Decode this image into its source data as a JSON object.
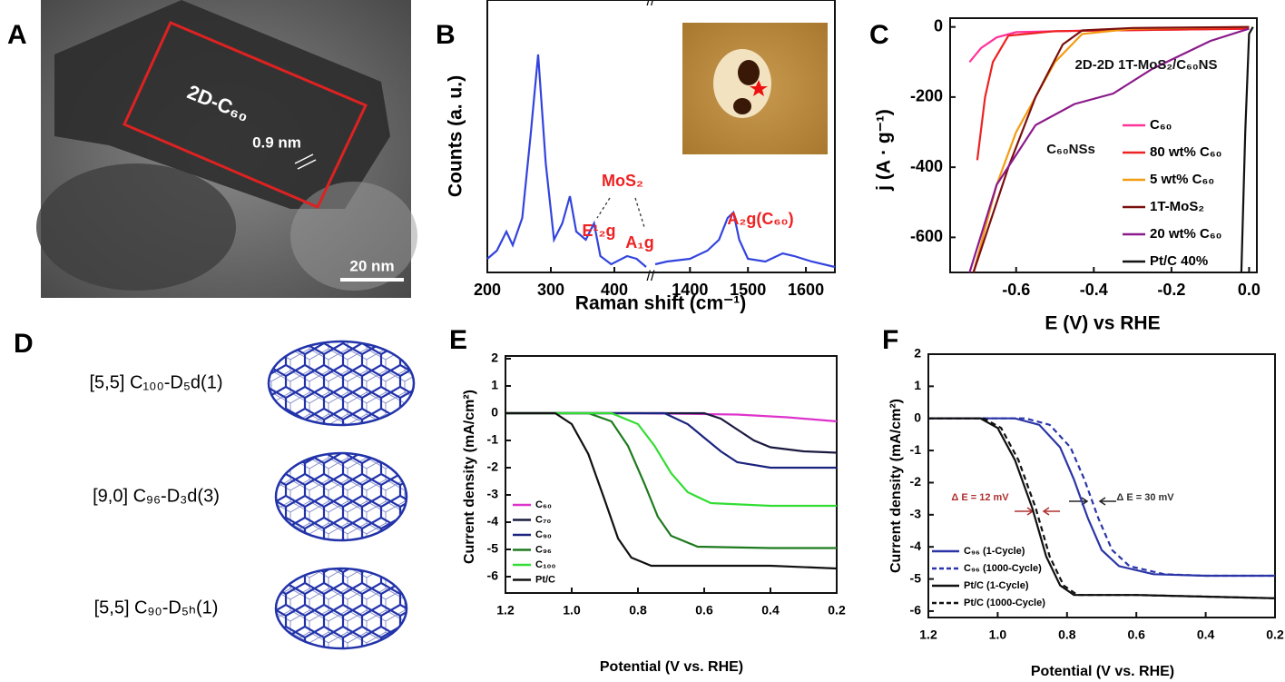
{
  "panel_a": {
    "panel": "A",
    "region_label": "2D-C₆₀",
    "spacing_label": "0.9 nm",
    "scale_bar": "20 nm"
  },
  "panel_d": {
    "panel": "D",
    "structures": [
      "[5,5] C₁₀₀-D₅d(1)",
      "[9,0] C₉₆-D₃d(3)",
      "[5,5] C₉₀-D₅ₕ(1)"
    ]
  },
  "chart_data": [
    {
      "type": "line",
      "panel": "B",
      "x_label": "Raman shift (cm⁻¹)",
      "y_label": "Counts (a. u.)",
      "xlim": [
        200,
        450
      ],
      "x2lim": [
        1340,
        1650
      ],
      "xticks": [
        200,
        300,
        400
      ],
      "x2ticks": [
        1400,
        1500,
        1600
      ],
      "ylim": [
        0,
        100
      ],
      "series": [
        {
          "color": "#3344dd",
          "x": [
            200,
            215,
            230,
            240,
            255,
            268,
            280,
            292,
            305,
            318,
            330,
            340,
            355,
            368,
            378,
            395,
            420,
            435,
            450
          ],
          "values": [
            5,
            8,
            15,
            10,
            20,
            50,
            80,
            40,
            12,
            18,
            28,
            15,
            12,
            18,
            6,
            3,
            6,
            5,
            2
          ]
        },
        {
          "color": "#3344dd",
          "axis": "x2",
          "x": [
            1340,
            1360,
            1400,
            1430,
            1450,
            1465,
            1475,
            1485,
            1500,
            1530,
            1560,
            1580,
            1610,
            1650
          ],
          "values": [
            3,
            4,
            5,
            8,
            12,
            20,
            22,
            12,
            5,
            4,
            7,
            6,
            4,
            2
          ]
        }
      ],
      "annotations": [
        {
          "text": "MoS₂",
          "color": "#ee2222"
        },
        {
          "text": "E¹₂g",
          "color": "#ee2222"
        },
        {
          "text": "A₁g",
          "color": "#ee2222"
        },
        {
          "text": "A₂g(C₆₀)",
          "color": "#ee2222"
        }
      ]
    },
    {
      "type": "line",
      "panel": "C",
      "x_label": "E (V) vs RHE",
      "y_label": "j (A · g⁻¹)",
      "xlim": [
        -0.77,
        0.02
      ],
      "ylim": [
        -700,
        25
      ],
      "xticks": [
        -0.6,
        -0.4,
        -0.2,
        {
          "value": 0,
          "label": "0.0"
        }
      ],
      "yticks": [
        0,
        -200,
        -400,
        -600
      ],
      "series": [
        {
          "name": "C₆₀",
          "color": "#ff3399",
          "x": [
            -0.72,
            -0.69,
            -0.65,
            -0.6,
            -0.4,
            -0.2,
            0
          ],
          "values": [
            -100,
            -60,
            -30,
            -15,
            -10,
            -8,
            -5
          ]
        },
        {
          "name": "80 wt% C₆₀",
          "color": "#ee2222",
          "x": [
            -0.7,
            -0.68,
            -0.66,
            -0.62,
            -0.5,
            -0.2,
            0
          ],
          "values": [
            -380,
            -200,
            -100,
            -25,
            -12,
            -8,
            -5
          ]
        },
        {
          "name": "5 wt% C₆₀",
          "color": "#f39c12",
          "x": [
            -0.71,
            -0.65,
            -0.6,
            -0.5,
            -0.43,
            -0.3,
            0
          ],
          "values": [
            -700,
            -450,
            -300,
            -100,
            -20,
            -5,
            0
          ]
        },
        {
          "name": "1T-MoS₂",
          "color": "#7b1010",
          "x": [
            -0.71,
            -0.62,
            -0.55,
            -0.48,
            -0.43,
            -0.3,
            0
          ],
          "values": [
            -700,
            -400,
            -200,
            -50,
            -10,
            -3,
            0
          ]
        },
        {
          "name": "20 wt% C₆₀",
          "color": "#8b1a8b",
          "x": [
            -0.72,
            -0.65,
            -0.55,
            -0.45,
            -0.35,
            -0.25,
            -0.1,
            0
          ],
          "values": [
            -700,
            -450,
            -280,
            -220,
            -190,
            -120,
            -40,
            -5
          ]
        },
        {
          "name": "Pt/C 40%",
          "color": "#111111",
          "x": [
            -0.02,
            -0.01,
            0,
            0.01
          ],
          "values": [
            -700,
            -300,
            -20,
            0
          ]
        }
      ],
      "annotations": [
        {
          "text": "2D-2D 1T-MoS₂/C₆₀NS",
          "color": "#111"
        },
        {
          "text": "C₆₀NSs",
          "color": "#111"
        }
      ]
    },
    {
      "type": "line",
      "panel": "E",
      "x_label": "Potential (V vs. RHE)",
      "y_label": "Current density (mA/cm²)",
      "xlim": [
        1.2,
        0.2
      ],
      "ylim": [
        -6.6,
        2.1
      ],
      "xticks": [
        1.2,
        {
          "value": 1,
          "label": "1.0"
        },
        0.8,
        0.6,
        0.4,
        0.2
      ],
      "yticks": [
        2,
        1,
        0,
        -1,
        -2,
        -3,
        -4,
        -5,
        -6
      ],
      "series": [
        {
          "name": "C₆₀",
          "color": "#dd33cc",
          "x": [
            1.2,
            0.8,
            0.5,
            0.35,
            0.2
          ],
          "values": [
            0,
            0,
            -0.05,
            -0.15,
            -0.3
          ]
        },
        {
          "name": "C₇₀",
          "color": "#1a1a40",
          "x": [
            1.2,
            0.6,
            0.55,
            0.5,
            0.45,
            0.4,
            0.3,
            0.2
          ],
          "values": [
            0,
            0,
            -0.2,
            -0.6,
            -1.0,
            -1.25,
            -1.4,
            -1.45
          ]
        },
        {
          "name": "C₉₀",
          "color": "#1a237e",
          "x": [
            1.2,
            0.72,
            0.65,
            0.6,
            0.55,
            0.5,
            0.4,
            0.2
          ],
          "values": [
            0,
            0,
            -0.4,
            -0.9,
            -1.4,
            -1.8,
            -2.0,
            -2.0
          ]
        },
        {
          "name": "C₉₆",
          "color": "#1e7a1e",
          "x": [
            1.2,
            0.95,
            0.88,
            0.83,
            0.78,
            0.74,
            0.7,
            0.62,
            0.4,
            0.2
          ],
          "values": [
            0,
            0,
            -0.3,
            -1.2,
            -2.6,
            -3.8,
            -4.5,
            -4.9,
            -4.95,
            -4.95
          ]
        },
        {
          "name": "C₁₀₀",
          "color": "#33dd33",
          "x": [
            1.2,
            0.88,
            0.8,
            0.75,
            0.7,
            0.65,
            0.58,
            0.4,
            0.2
          ],
          "values": [
            0,
            0,
            -0.4,
            -1.2,
            -2.2,
            -2.9,
            -3.3,
            -3.4,
            -3.4
          ]
        },
        {
          "name": "Pt/C",
          "color": "#111111",
          "x": [
            1.2,
            1.05,
            1.0,
            0.95,
            0.9,
            0.86,
            0.82,
            0.76,
            0.6,
            0.4,
            0.2
          ],
          "values": [
            0,
            0,
            -0.4,
            -1.5,
            -3.2,
            -4.6,
            -5.3,
            -5.6,
            -5.6,
            -5.6,
            -5.7
          ]
        }
      ]
    },
    {
      "type": "line",
      "panel": "F",
      "x_label": "Potential (V vs. RHE)",
      "y_label": "Current density (mA/cm²)",
      "xlim": [
        1.2,
        0.2
      ],
      "ylim": [
        -6.2,
        2
      ],
      "xticks": [
        1.2,
        {
          "value": 1,
          "label": "1.0"
        },
        0.8,
        0.6,
        0.4,
        0.2
      ],
      "yticks": [
        2,
        1,
        0,
        -1,
        -2,
        -3,
        -4,
        -5,
        -6
      ],
      "series": [
        {
          "name": "C₉₆ (1-Cycle)",
          "color": "#2b35a8",
          "x": [
            1.2,
            0.95,
            0.88,
            0.82,
            0.78,
            0.74,
            0.7,
            0.65,
            0.55,
            0.4,
            0.2
          ],
          "values": [
            0,
            0,
            -0.2,
            -0.9,
            -1.9,
            -3.1,
            -4.1,
            -4.6,
            -4.85,
            -4.9,
            -4.9
          ]
        },
        {
          "name": "C₉₆ (1000-Cycle)",
          "color": "#2b35a8",
          "dash": true,
          "x": [
            1.2,
            0.92,
            0.85,
            0.79,
            0.75,
            0.71,
            0.67,
            0.62,
            0.52,
            0.4,
            0.2
          ],
          "values": [
            0,
            0,
            -0.2,
            -0.9,
            -1.9,
            -3.1,
            -4.1,
            -4.6,
            -4.85,
            -4.9,
            -4.9
          ]
        },
        {
          "name": "Pt/C (1-Cycle)",
          "color": "#111111",
          "x": [
            1.2,
            1.05,
            1.0,
            0.95,
            0.9,
            0.86,
            0.82,
            0.78,
            0.6,
            0.4,
            0.2
          ],
          "values": [
            0,
            0,
            -0.3,
            -1.3,
            -2.8,
            -4.3,
            -5.2,
            -5.5,
            -5.5,
            -5.55,
            -5.6
          ]
        },
        {
          "name": "Pt/C (1000-Cycle)",
          "color": "#111111",
          "dash": true,
          "x": [
            1.2,
            1.04,
            0.99,
            0.94,
            0.89,
            0.85,
            0.81,
            0.77,
            0.6,
            0.4,
            0.2
          ],
          "values": [
            0,
            0,
            -0.3,
            -1.3,
            -2.8,
            -4.3,
            -5.2,
            -5.5,
            -5.5,
            -5.55,
            -5.6
          ]
        }
      ],
      "annotations": [
        {
          "text": "Δ E = 12 mV",
          "color": "#b03030"
        },
        {
          "text": "Δ E = 30 mV",
          "color": "#333"
        }
      ]
    }
  ]
}
